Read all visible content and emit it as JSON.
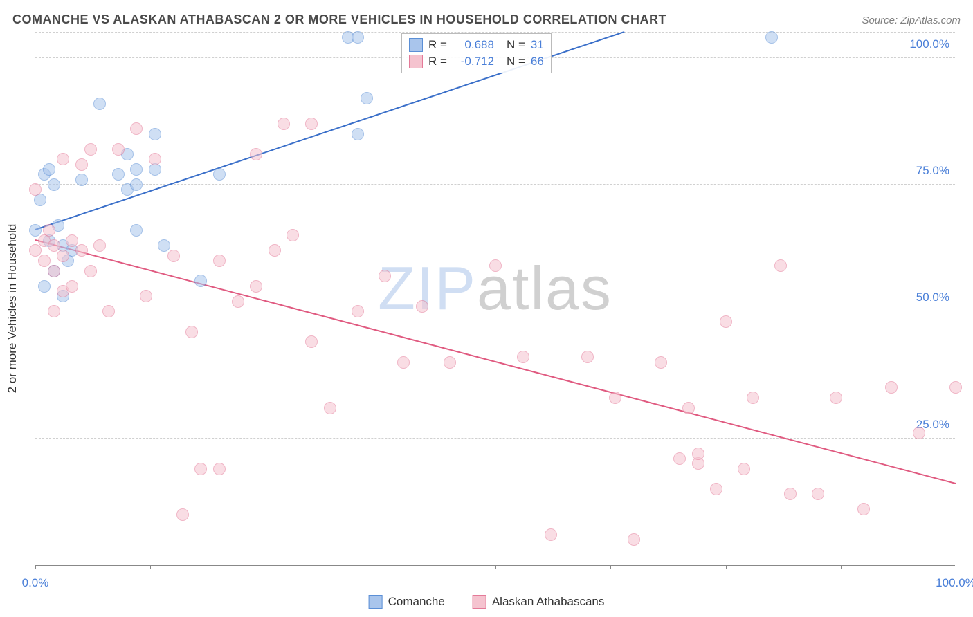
{
  "header": {
    "title": "COMANCHE VS ALASKAN ATHABASCAN 2 OR MORE VEHICLES IN HOUSEHOLD CORRELATION CHART",
    "source": "Source: ZipAtlas.com"
  },
  "watermark": {
    "part1": "ZIP",
    "part2": "atlas"
  },
  "chart": {
    "type": "scatter",
    "y_label": "2 or more Vehicles in Household",
    "xlim": [
      0,
      100
    ],
    "ylim": [
      0,
      105
    ],
    "x_ticks": [
      0,
      12.5,
      25,
      37.5,
      50,
      62.5,
      75,
      87.5,
      100
    ],
    "x_tick_labels": {
      "0": "0.0%",
      "100": "100.0%"
    },
    "y_gridlines": [
      25,
      50,
      75,
      100,
      105
    ],
    "y_tick_labels": {
      "25": "25.0%",
      "50": "50.0%",
      "75": "75.0%",
      "100": "100.0%"
    },
    "background_color": "#ffffff",
    "grid_color": "#d0d0d0",
    "axis_color": "#888888",
    "label_fontsize": 17,
    "tick_color": "#4a7fd8",
    "point_radius": 9,
    "point_opacity": 0.55,
    "series": [
      {
        "name": "Comanche",
        "fill_color": "#a9c5ec",
        "stroke_color": "#5b8fd6",
        "line_color": "#3a6fc9",
        "trend": {
          "x1": 0,
          "y1": 66,
          "x2": 64,
          "y2": 105
        },
        "stats": {
          "R": "0.688",
          "N": "31"
        },
        "points": [
          [
            0,
            66
          ],
          [
            0.5,
            72
          ],
          [
            1,
            77
          ],
          [
            1,
            55
          ],
          [
            1.5,
            64
          ],
          [
            1.5,
            78
          ],
          [
            2,
            75
          ],
          [
            2,
            58
          ],
          [
            2.5,
            67
          ],
          [
            3,
            63
          ],
          [
            3,
            53
          ],
          [
            3.5,
            60
          ],
          [
            4,
            62
          ],
          [
            5,
            76
          ],
          [
            7,
            91
          ],
          [
            9,
            77
          ],
          [
            10,
            81
          ],
          [
            10,
            74
          ],
          [
            11,
            75
          ],
          [
            11,
            78
          ],
          [
            11,
            66
          ],
          [
            13,
            85
          ],
          [
            13,
            78
          ],
          [
            14,
            63
          ],
          [
            18,
            56
          ],
          [
            20,
            77
          ],
          [
            34,
            104
          ],
          [
            35,
            85
          ],
          [
            35,
            104
          ],
          [
            36,
            92
          ],
          [
            80,
            104
          ]
        ]
      },
      {
        "name": "Alaskan Athabascans",
        "fill_color": "#f5c3cf",
        "stroke_color": "#e47a98",
        "line_color": "#e05a80",
        "trend": {
          "x1": 0,
          "y1": 64,
          "x2": 100,
          "y2": 16
        },
        "stats": {
          "R": "-0.712",
          "N": "66"
        },
        "points": [
          [
            0,
            74
          ],
          [
            0,
            62
          ],
          [
            1,
            64
          ],
          [
            1,
            60
          ],
          [
            1.5,
            66
          ],
          [
            2,
            63
          ],
          [
            2,
            58
          ],
          [
            2,
            50
          ],
          [
            3,
            80
          ],
          [
            3,
            61
          ],
          [
            3,
            54
          ],
          [
            4,
            64
          ],
          [
            4,
            55
          ],
          [
            5,
            79
          ],
          [
            5,
            62
          ],
          [
            6,
            82
          ],
          [
            6,
            58
          ],
          [
            7,
            63
          ],
          [
            8,
            50
          ],
          [
            9,
            82
          ],
          [
            11,
            86
          ],
          [
            12,
            53
          ],
          [
            13,
            80
          ],
          [
            15,
            61
          ],
          [
            16,
            10
          ],
          [
            17,
            46
          ],
          [
            18,
            19
          ],
          [
            20,
            60
          ],
          [
            20,
            19
          ],
          [
            22,
            52
          ],
          [
            24,
            81
          ],
          [
            24,
            55
          ],
          [
            26,
            62
          ],
          [
            27,
            87
          ],
          [
            28,
            65
          ],
          [
            30,
            87
          ],
          [
            30,
            44
          ],
          [
            32,
            31
          ],
          [
            35,
            50
          ],
          [
            38,
            57
          ],
          [
            40,
            40
          ],
          [
            42,
            51
          ],
          [
            45,
            40
          ],
          [
            50,
            59
          ],
          [
            53,
            41
          ],
          [
            56,
            6
          ],
          [
            60,
            41
          ],
          [
            63,
            33
          ],
          [
            65,
            5
          ],
          [
            68,
            40
          ],
          [
            70,
            21
          ],
          [
            71,
            31
          ],
          [
            72,
            20
          ],
          [
            72,
            22
          ],
          [
            74,
            15
          ],
          [
            75,
            48
          ],
          [
            77,
            19
          ],
          [
            78,
            33
          ],
          [
            81,
            59
          ],
          [
            82,
            14
          ],
          [
            85,
            14
          ],
          [
            87,
            33
          ],
          [
            90,
            11
          ],
          [
            93,
            35
          ],
          [
            96,
            26
          ],
          [
            100,
            35
          ]
        ]
      }
    ]
  },
  "legend": {
    "series1_label": "Comanche",
    "series2_label": "Alaskan Athabascans"
  },
  "stats_legend": {
    "r_label": "R =",
    "n_label": "N ="
  }
}
